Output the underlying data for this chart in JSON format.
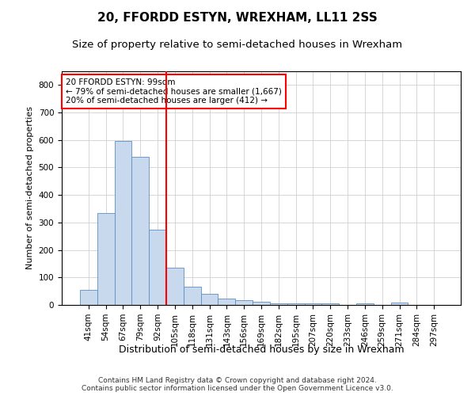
{
  "title": "20, FFORDD ESTYN, WREXHAM, LL11 2SS",
  "subtitle": "Size of property relative to semi-detached houses in Wrexham",
  "xlabel": "Distribution of semi-detached houses by size in Wrexham",
  "ylabel": "Number of semi-detached properties",
  "footer": "Contains HM Land Registry data © Crown copyright and database right 2024.\nContains public sector information licensed under the Open Government Licence v3.0.",
  "categories": [
    "41sqm",
    "54sqm",
    "67sqm",
    "79sqm",
    "92sqm",
    "105sqm",
    "118sqm",
    "131sqm",
    "143sqm",
    "156sqm",
    "169sqm",
    "182sqm",
    "195sqm",
    "207sqm",
    "220sqm",
    "233sqm",
    "246sqm",
    "259sqm",
    "271sqm",
    "284sqm",
    "297sqm"
  ],
  "values": [
    55,
    333,
    597,
    540,
    275,
    135,
    65,
    40,
    22,
    17,
    12,
    7,
    6,
    7,
    5,
    0,
    5,
    0,
    10,
    0,
    0
  ],
  "bar_color": "#c8d9ed",
  "bar_edge_color": "#5b8ec4",
  "vline_x": 4.5,
  "vline_color": "red",
  "annotation_text": "20 FFORDD ESTYN: 99sqm\n← 79% of semi-detached houses are smaller (1,667)\n20% of semi-detached houses are larger (412) →",
  "annotation_box_color": "white",
  "annotation_box_edge": "red",
  "ylim": [
    0,
    850
  ],
  "yticks": [
    0,
    100,
    200,
    300,
    400,
    500,
    600,
    700,
    800
  ],
  "title_fontsize": 11,
  "subtitle_fontsize": 9.5,
  "xlabel_fontsize": 9,
  "ylabel_fontsize": 8,
  "tick_fontsize": 7.5,
  "annotation_fontsize": 7.5,
  "footer_fontsize": 6.5
}
